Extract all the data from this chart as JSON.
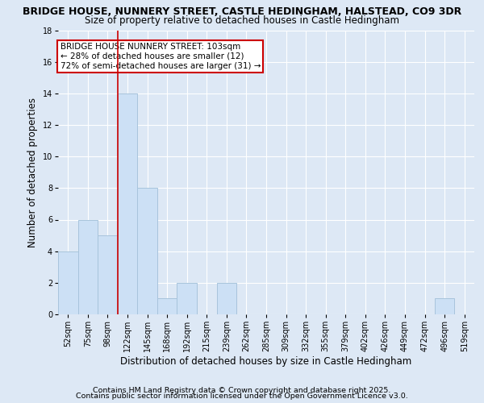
{
  "title1": "BRIDGE HOUSE, NUNNERY STREET, CASTLE HEDINGHAM, HALSTEAD, CO9 3DR",
  "title2": "Size of property relative to detached houses in Castle Hedingham",
  "xlabel": "Distribution of detached houses by size in Castle Hedingham",
  "ylabel": "Number of detached properties",
  "categories": [
    "52sqm",
    "75sqm",
    "98sqm",
    "122sqm",
    "145sqm",
    "168sqm",
    "192sqm",
    "215sqm",
    "239sqm",
    "262sqm",
    "285sqm",
    "309sqm",
    "332sqm",
    "355sqm",
    "379sqm",
    "402sqm",
    "426sqm",
    "449sqm",
    "472sqm",
    "496sqm",
    "519sqm"
  ],
  "values": [
    4,
    6,
    5,
    14,
    8,
    1,
    2,
    0,
    2,
    0,
    0,
    0,
    0,
    0,
    0,
    0,
    0,
    0,
    0,
    1,
    0
  ],
  "bar_color": "#cce0f5",
  "bar_edge_color": "#a8c4dc",
  "red_line_x": 2.5,
  "annotation_text": "BRIDGE HOUSE NUNNERY STREET: 103sqm\n← 28% of detached houses are smaller (12)\n72% of semi-detached houses are larger (31) →",
  "annotation_box_color": "#ffffff",
  "annotation_box_edge": "#cc0000",
  "ylim": [
    0,
    18
  ],
  "yticks": [
    0,
    2,
    4,
    6,
    8,
    10,
    12,
    14,
    16,
    18
  ],
  "footer1": "Contains HM Land Registry data © Crown copyright and database right 2025.",
  "footer2": "Contains public sector information licensed under the Open Government Licence v3.0.",
  "bg_color": "#dde8f5",
  "plot_bg_color": "#dde8f5",
  "grid_color": "#ffffff",
  "title1_fontsize": 9.0,
  "title2_fontsize": 8.5,
  "tick_fontsize": 7.0,
  "label_fontsize": 8.5,
  "ylabel_fontsize": 8.5,
  "footer_fontsize": 6.8,
  "annotation_fontsize": 7.5,
  "red_line_color": "#cc0000"
}
